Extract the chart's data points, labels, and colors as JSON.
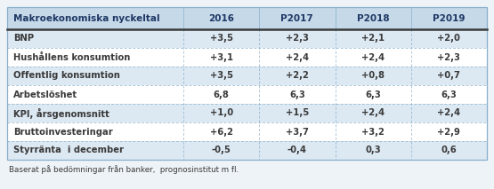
{
  "title_col": "Makroekonomiska nyckeltal",
  "columns": [
    "2016",
    "P2017",
    "P2018",
    "P2019"
  ],
  "rows": [
    {
      "label": "BNP",
      "values": [
        "+3,5",
        "+2,3",
        "+2,1",
        "+2,0"
      ],
      "shaded": true
    },
    {
      "label": "Hushållens konsumtion",
      "values": [
        "+3,1",
        "+2,4",
        "+2,4",
        "+2,3"
      ],
      "shaded": false
    },
    {
      "label": "Offentlig konsumtion",
      "values": [
        "+3,5",
        "+2,2",
        "+0,8",
        "+0,7"
      ],
      "shaded": true
    },
    {
      "label": "Arbetslöshet",
      "values": [
        "6,8",
        "6,3",
        "6,3",
        "6,3"
      ],
      "shaded": false
    },
    {
      "label": "KPI, årsgenomsnitt",
      "values": [
        "+1,0",
        "+1,5",
        "+2,4",
        "+2,4"
      ],
      "shaded": true
    },
    {
      "label": "Bruttoinvesteringar",
      "values": [
        "+6,2",
        "+3,7",
        "+3,2",
        "+2,9"
      ],
      "shaded": false
    },
    {
      "label": "Styrränta  i december",
      "values": [
        "-0,5",
        "-0,4",
        "0,3",
        "0,6"
      ],
      "shaded": true
    }
  ],
  "footnote": "Baserat på bedömningar från banker,  prognosinstitut m fl.",
  "header_bg": "#c5d9e9",
  "shaded_bg": "#dce8f2",
  "white_bg": "#ffffff",
  "border_color": "#8ab0cc",
  "text_color": "#3a3a3a",
  "header_text_color": "#1f3864",
  "thick_line_color": "#3a3a3a",
  "outer_bg": "#eef3f7",
  "fig_bg": "#eef3f7"
}
